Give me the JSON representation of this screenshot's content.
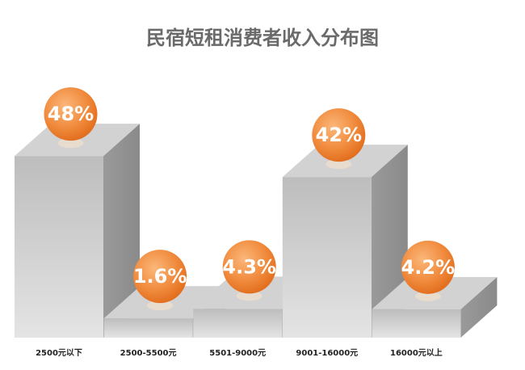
{
  "chart_data": {
    "type": "bar3d",
    "title": "民宿短租消费者收入分布图",
    "categories": [
      "2500元以下",
      "2500-5500元",
      "5501-9000元",
      "9001-16000元",
      "16000元以上"
    ],
    "values": [
      48,
      1.6,
      4.3,
      42,
      4.2
    ],
    "value_labels": [
      "48%",
      "1.6%",
      "4.3%",
      "42%",
      "4.2%"
    ],
    "color": "#c4c4c4",
    "label_color": "#f08a3c"
  }
}
